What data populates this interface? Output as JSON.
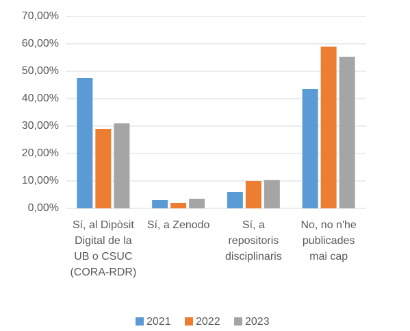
{
  "chart_data": {
    "type": "bar",
    "categories": [
      "Sí, al Dipòsit\nDigital de la\nUB o CSUC\n(CORA-RDR)",
      "Sí, a Zenodo",
      "Sí, a\nrepositoris\ndisciplinaris",
      "No, no n'he\npublicades\nmai cap"
    ],
    "series": [
      {
        "name": "2021",
        "color": "#5b9bd5",
        "values": [
          47.5,
          3.0,
          6.0,
          43.5
        ]
      },
      {
        "name": "2022",
        "color": "#ed7d31",
        "values": [
          29.0,
          2.0,
          10.0,
          59.0
        ]
      },
      {
        "name": "2023",
        "color": "#a5a5a5",
        "values": [
          31.0,
          3.5,
          10.3,
          55.3
        ]
      }
    ],
    "ylim": [
      0,
      70
    ],
    "yticks": [
      {
        "value": 0,
        "label": "0,00%"
      },
      {
        "value": 10,
        "label": "10,00%"
      },
      {
        "value": 20,
        "label": "20,00%"
      },
      {
        "value": 30,
        "label": "30,00%"
      },
      {
        "value": 40,
        "label": "40,00%"
      },
      {
        "value": 50,
        "label": "50,00%"
      },
      {
        "value": 60,
        "label": "60,00%"
      },
      {
        "value": 70,
        "label": "70,00%"
      }
    ],
    "grid": true,
    "legend": "bottom"
  }
}
